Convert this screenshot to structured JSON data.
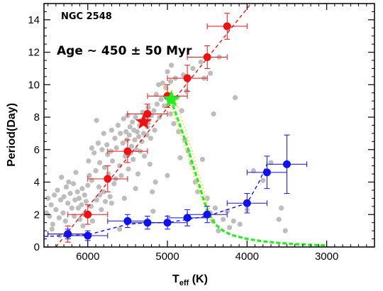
{
  "chart_data": {
    "type": "scatter",
    "title": "NGC 2548",
    "annotation": "Age ~ 450 ± 50 Myr",
    "xlabel_main": "T",
    "xlabel_sub": "eff",
    "xlabel_unit": " (K)",
    "ylabel": "Period(Day)",
    "xlim": [
      6550,
      2400
    ],
    "ylim": [
      0,
      15
    ],
    "x_reversed": true,
    "grid": false,
    "xticks": [
      6000,
      5000,
      4000,
      3000
    ],
    "xtick_labels": [
      "6000",
      "5000",
      "4000",
      "3000"
    ],
    "yticks": [
      0,
      2,
      4,
      6,
      8,
      10,
      12,
      14
    ],
    "ytick_labels": [
      "0",
      "2",
      "4",
      "6",
      "8",
      "10",
      "12",
      "14"
    ],
    "colors": {
      "red": "#ee1111",
      "blue": "#1111ee",
      "gray": "#bdbdbd",
      "green": "#22ee22",
      "yellow": "#f3e33a"
    },
    "gray_points": [
      [
        6520,
        2.1
      ],
      [
        6500,
        3.0
      ],
      [
        6480,
        1.9
      ],
      [
        6460,
        2.6
      ],
      [
        6440,
        1.4
      ],
      [
        6420,
        3.2
      ],
      [
        6400,
        2.3
      ],
      [
        6380,
        3.5
      ],
      [
        6360,
        1.8
      ],
      [
        6340,
        2.9
      ],
      [
        6330,
        4.3
      ],
      [
        6310,
        2.1
      ],
      [
        6300,
        3.1
      ],
      [
        6280,
        1.6
      ],
      [
        6270,
        3.7
      ],
      [
        6250,
        2.7
      ],
      [
        6240,
        4.0
      ],
      [
        6220,
        3.3
      ],
      [
        6200,
        2.4
      ],
      [
        6180,
        3.9
      ],
      [
        6170,
        1.9
      ],
      [
        6160,
        2.9
      ],
      [
        6150,
        4.6
      ],
      [
        6130,
        3.4
      ],
      [
        6120,
        2.4
      ],
      [
        6110,
        3.0
      ],
      [
        6100,
        1.7
      ],
      [
        6080,
        2.6
      ],
      [
        6070,
        3.6
      ],
      [
        6060,
        1.3
      ],
      [
        6050,
        2.0
      ],
      [
        6040,
        3.2
      ],
      [
        6020,
        2.8
      ],
      [
        6000,
        3.8
      ],
      [
        5990,
        5.3
      ],
      [
        5980,
        4.4
      ],
      [
        5960,
        2.5
      ],
      [
        5950,
        4.1
      ],
      [
        5940,
        1.6
      ],
      [
        5920,
        5.8
      ],
      [
        5900,
        4.7
      ],
      [
        5890,
        2.9
      ],
      [
        5870,
        6.4
      ],
      [
        5860,
        3.7
      ],
      [
        5850,
        5.2
      ],
      [
        5830,
        2.3
      ],
      [
        5820,
        6.0
      ],
      [
        5800,
        3.4
      ],
      [
        5790,
        4.9
      ],
      [
        5780,
        2.8
      ],
      [
        5760,
        6.3
      ],
      [
        5750,
        5.7
      ],
      [
        5740,
        4.5
      ],
      [
        5720,
        3.1
      ],
      [
        5710,
        5.9
      ],
      [
        5700,
        7.2
      ],
      [
        5690,
        5.3
      ],
      [
        5670,
        3.9
      ],
      [
        5660,
        6.7
      ],
      [
        5650,
        4.2
      ],
      [
        5640,
        6.1
      ],
      [
        5620,
        7.5
      ],
      [
        5600,
        5.0
      ],
      [
        5590,
        7.0
      ],
      [
        5580,
        4.4
      ],
      [
        5560,
        6.4
      ],
      [
        5550,
        7.9
      ],
      [
        5540,
        3.0
      ],
      [
        5530,
        5.6
      ],
      [
        5520,
        7.1
      ],
      [
        5510,
        6.6
      ],
      [
        5500,
        8.1
      ],
      [
        5490,
        4.8
      ],
      [
        5480,
        6.9
      ],
      [
        5470,
        7.4
      ],
      [
        5460,
        5.8
      ],
      [
        5450,
        6.2
      ],
      [
        5440,
        7.7
      ],
      [
        5430,
        5.4
      ],
      [
        5420,
        7.2
      ],
      [
        5410,
        6.6
      ],
      [
        5400,
        8.0
      ],
      [
        5390,
        6.0
      ],
      [
        5380,
        7.1
      ],
      [
        5370,
        4.5
      ],
      [
        5360,
        6.8
      ],
      [
        5350,
        7.5
      ],
      [
        5340,
        5.9
      ],
      [
        5330,
        7.8
      ],
      [
        5320,
        6.5
      ],
      [
        5310,
        8.3
      ],
      [
        5300,
        7.0
      ],
      [
        5290,
        5.6
      ],
      [
        5280,
        7.6
      ],
      [
        5270,
        8.0
      ],
      [
        5260,
        6.9
      ],
      [
        5250,
        7.4
      ],
      [
        5240,
        8.6
      ],
      [
        5230,
        7.8
      ],
      [
        5220,
        5.1
      ],
      [
        5210,
        6.7
      ],
      [
        5200,
        8.1
      ],
      [
        5190,
        3.4
      ],
      [
        5180,
        2.2
      ],
      [
        5170,
        8.4
      ],
      [
        5160,
        7.2
      ],
      [
        5150,
        4.0
      ],
      [
        5140,
        9.4
      ],
      [
        5130,
        8.8
      ],
      [
        5110,
        10.0
      ],
      [
        5100,
        8.0
      ],
      [
        5080,
        9.1
      ],
      [
        5060,
        10.1
      ],
      [
        5040,
        8.7
      ],
      [
        5020,
        9.8
      ],
      [
        5000,
        10.8
      ],
      [
        4980,
        9.4
      ],
      [
        4960,
        8.2
      ],
      [
        4940,
        8.9
      ],
      [
        4920,
        7.6
      ],
      [
        4900,
        10.4
      ],
      [
        4880,
        9.2
      ],
      [
        4860,
        7.1
      ],
      [
        4840,
        5.5
      ],
      [
        4820,
        8.4
      ],
      [
        4800,
        10.6
      ],
      [
        4780,
        6.6
      ],
      [
        4760,
        9.6
      ],
      [
        4740,
        5.9
      ],
      [
        4700,
        5.2
      ],
      [
        4680,
        11.0
      ],
      [
        4650,
        4.0
      ],
      [
        4620,
        3.4
      ],
      [
        4580,
        11.4
      ],
      [
        4560,
        5.4
      ],
      [
        4530,
        2.0
      ],
      [
        4500,
        3.0
      ],
      [
        4460,
        2.1
      ],
      [
        4430,
        1.6
      ],
      [
        4400,
        2.4
      ],
      [
        4360,
        1.0
      ],
      [
        4300,
        1.7
      ],
      [
        4250,
        2.2
      ],
      [
        4220,
        1.2
      ],
      [
        4170,
        1.6
      ],
      [
        4090,
        1.4
      ],
      [
        4000,
        2.3
      ],
      [
        3920,
        4.7
      ],
      [
        3800,
        4.1
      ],
      [
        3700,
        5.2
      ],
      [
        3600,
        1.7
      ],
      [
        3570,
        2.4
      ],
      [
        3520,
        1.0
      ],
      [
        5850,
        3.2
      ],
      [
        5700,
        2.7
      ],
      [
        5400,
        3.6
      ],
      [
        5000,
        4.4
      ],
      [
        4950,
        11.2
      ],
      [
        4960,
        10.2
      ],
      [
        4540,
        10.4
      ],
      [
        4460,
        10.7
      ],
      [
        4420,
        8.2
      ],
      [
        4350,
        11.7
      ],
      [
        4150,
        9.2
      ],
      [
        5600,
        1.1
      ],
      [
        6350,
        0.7
      ],
      [
        6450,
        1.1
      ],
      [
        5890,
        7.8
      ],
      [
        5950,
        6.1
      ],
      [
        5800,
        7.0
      ]
    ],
    "red_series": {
      "x": [
        6250,
        6000,
        5750,
        5500,
        5250,
        5000,
        4750,
        4500,
        4250
      ],
      "y": [
        0.8,
        2.0,
        4.2,
        5.9,
        8.2,
        9.3,
        10.4,
        11.7,
        13.6
      ],
      "xerr": [
        250,
        250,
        250,
        250,
        250,
        250,
        250,
        250,
        250
      ],
      "yerr": [
        0.5,
        0.6,
        0.8,
        0.7,
        0.6,
        0.7,
        0.8,
        0.7,
        0.8
      ],
      "fit_x": [
        6400,
        3950
      ],
      "fit_y": [
        0.0,
        15.0
      ]
    },
    "blue_series": {
      "x": [
        6250,
        6000,
        5500,
        5250,
        5000,
        4750,
        4500,
        4000,
        3750,
        3500
      ],
      "y": [
        0.8,
        0.7,
        1.6,
        1.5,
        1.5,
        1.8,
        2.0,
        2.7,
        4.6,
        5.1
      ],
      "xerr": [
        250,
        250,
        250,
        250,
        250,
        250,
        250,
        250,
        250,
        250
      ],
      "yerr": [
        0.3,
        0.3,
        0.4,
        0.4,
        0.4,
        0.5,
        0.5,
        0.6,
        1.0,
        1.8
      ],
      "fit_x": [
        6550,
        6250,
        6000,
        5500,
        5250,
        5000,
        4750,
        4500,
        4000,
        3850,
        3750
      ],
      "fit_y": [
        0.65,
        0.7,
        0.75,
        1.4,
        1.5,
        1.5,
        1.7,
        1.9,
        2.7,
        4.0,
        5.1
      ]
    },
    "red_stars": [
      [
        5300,
        7.7
      ]
    ],
    "green_stars": [
      [
        4950,
        9.1
      ]
    ],
    "green_track": {
      "x": [
        4960,
        4900,
        4850,
        4800,
        4750,
        4700,
        4650,
        4600,
        4550,
        4500,
        4450,
        4400,
        4300,
        4200,
        4000,
        3800,
        3600,
        3400,
        3200,
        3000
      ],
      "y": [
        9.1,
        8.3,
        7.6,
        6.9,
        6.2,
        5.4,
        4.6,
        3.8,
        3.0,
        2.3,
        1.8,
        1.4,
        1.0,
        0.75,
        0.5,
        0.35,
        0.25,
        0.18,
        0.13,
        0.1
      ]
    },
    "yellow_upper": {
      "x": [
        5050,
        4980,
        4920,
        4860,
        4800,
        4740,
        4680,
        4620,
        4560,
        4500,
        4450
      ],
      "y": [
        10.0,
        9.0,
        8.2,
        7.3,
        6.4,
        5.5,
        4.6,
        3.7,
        2.8,
        2.0,
        1.5
      ]
    },
    "yellow_lower": {
      "x": [
        4940,
        4880,
        4820,
        4760,
        4700,
        4640,
        4580,
        4520,
        4460,
        4420
      ],
      "y": [
        9.7,
        8.8,
        7.9,
        7.0,
        6.1,
        5.1,
        4.1,
        3.1,
        2.1,
        1.6
      ]
    }
  }
}
